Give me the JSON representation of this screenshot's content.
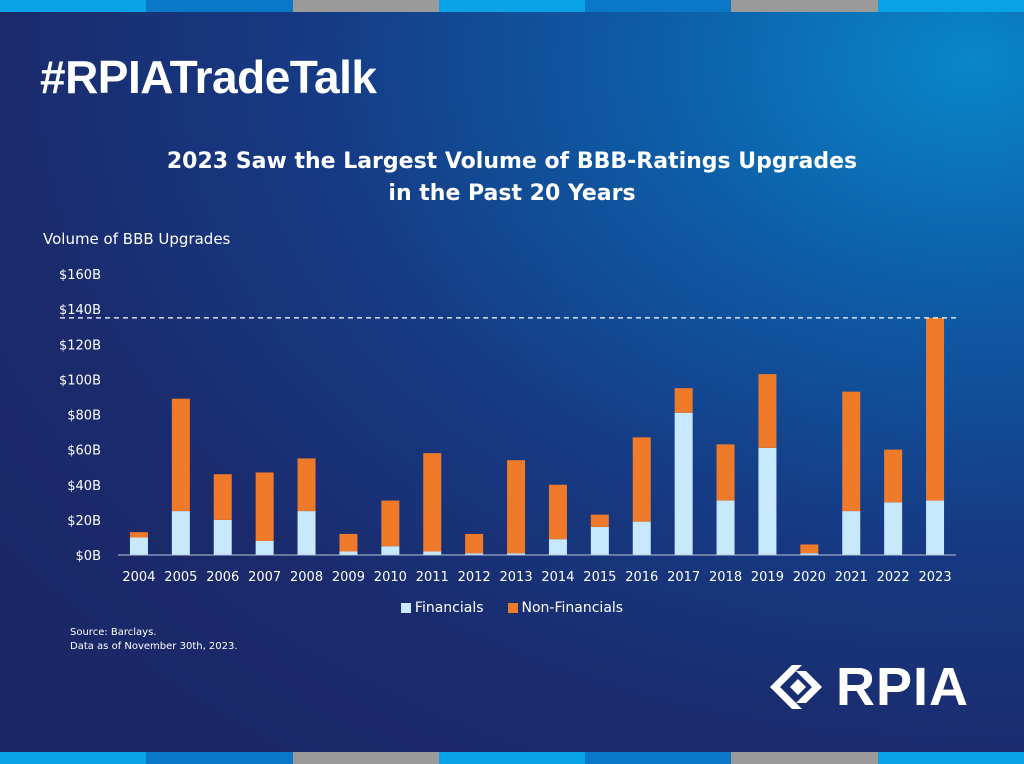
{
  "hashtag": "#RPIATradeTalk",
  "brand": "RPIA",
  "source_lines": [
    "Source: Barclays.",
    "Data as of November 30th, 2023."
  ],
  "colors": {
    "financials": "#c7e9fb",
    "non_financials": "#ef7a2a",
    "stripe": [
      "#0aa2e6",
      "#0a78c6",
      "#9a9a9a",
      "#0aa2e6",
      "#0a78c6",
      "#9a9a9a",
      "#0aa2e6"
    ]
  },
  "chart_data": {
    "type": "bar",
    "stacked": true,
    "title_lines": [
      "2023 Saw the Largest Volume of BBB-Ratings Upgrades",
      "in the Past 20 Years"
    ],
    "ylabel": "Volume of BBB Upgrades",
    "xlabel": "",
    "ylim": [
      0,
      160
    ],
    "yticks": [
      "$0B",
      "$20B",
      "$40B",
      "$60B",
      "$80B",
      "$100B",
      "$120B",
      "$140B",
      "$160B"
    ],
    "grid": false,
    "reference_line": {
      "value": 135,
      "style": "dashed"
    },
    "legend_position": "bottom-center",
    "categories": [
      "2004",
      "2005",
      "2006",
      "2007",
      "2008",
      "2009",
      "2010",
      "2011",
      "2012",
      "2013",
      "2014",
      "2015",
      "2016",
      "2017",
      "2018",
      "2019",
      "2020",
      "2021",
      "2022",
      "2023"
    ],
    "series": [
      {
        "name": "Financials",
        "values": [
          10,
          25,
          20,
          8,
          25,
          2,
          5,
          2,
          1,
          1,
          9,
          16,
          19,
          81,
          31,
          61,
          1,
          25,
          30,
          31
        ]
      },
      {
        "name": "Non-Financials",
        "values": [
          3,
          64,
          26,
          39,
          30,
          10,
          26,
          56,
          11,
          53,
          31,
          7,
          48,
          14,
          32,
          42,
          5,
          68,
          30,
          104
        ]
      }
    ]
  }
}
